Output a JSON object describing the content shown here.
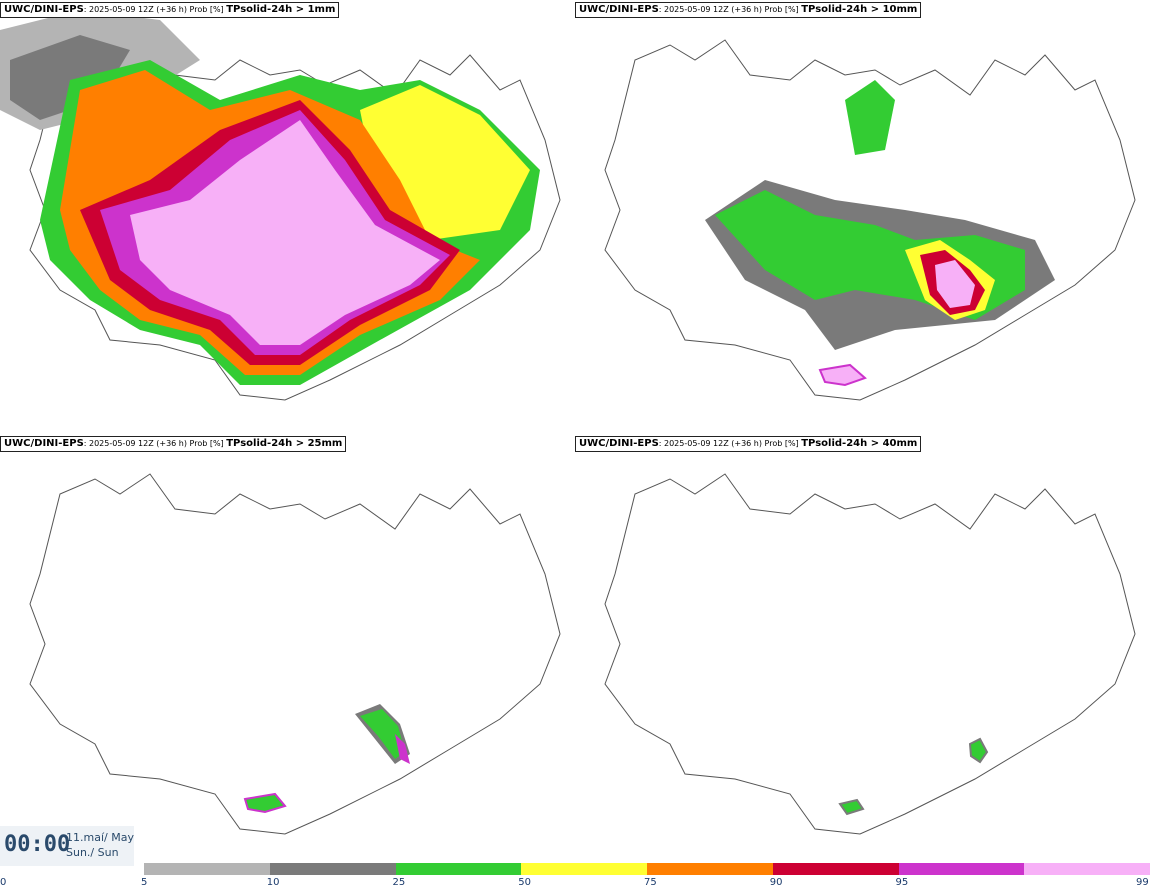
{
  "panels": [
    {
      "model": "UWC/DINI-EPS",
      "meta": ": 2025-05-09 12Z (+36 h) Prob [%] ",
      "param": "TPsolid-24h > 1mm"
    },
    {
      "model": "UWC/DINI-EPS",
      "meta": ": 2025-05-09 12Z (+36 h) Prob [%] ",
      "param": "TPsolid-24h > 10mm"
    },
    {
      "model": "UWC/DINI-EPS",
      "meta": ": 2025-05-09 12Z (+36 h) Prob [%] ",
      "param": "TPsolid-24h > 25mm"
    },
    {
      "model": "UWC/DINI-EPS",
      "meta": ": 2025-05-09 12Z (+36 h) Prob [%] ",
      "param": "TPsolid-24h > 40mm"
    }
  ],
  "time": {
    "clock": "00:00",
    "date_line1": "11.maí/ May",
    "date_line2": "Sun./ Sun"
  },
  "legend": {
    "ticks": [
      "0",
      "5",
      "10",
      "25",
      "50",
      "75",
      "90",
      "95",
      "99"
    ],
    "colors": [
      "#b4b4b4",
      "#7a7a7a",
      "#33cc33",
      "#ffff33",
      "#ff7f00",
      "#cc0033",
      "#cc33cc",
      "#f7b0f7"
    ]
  }
}
